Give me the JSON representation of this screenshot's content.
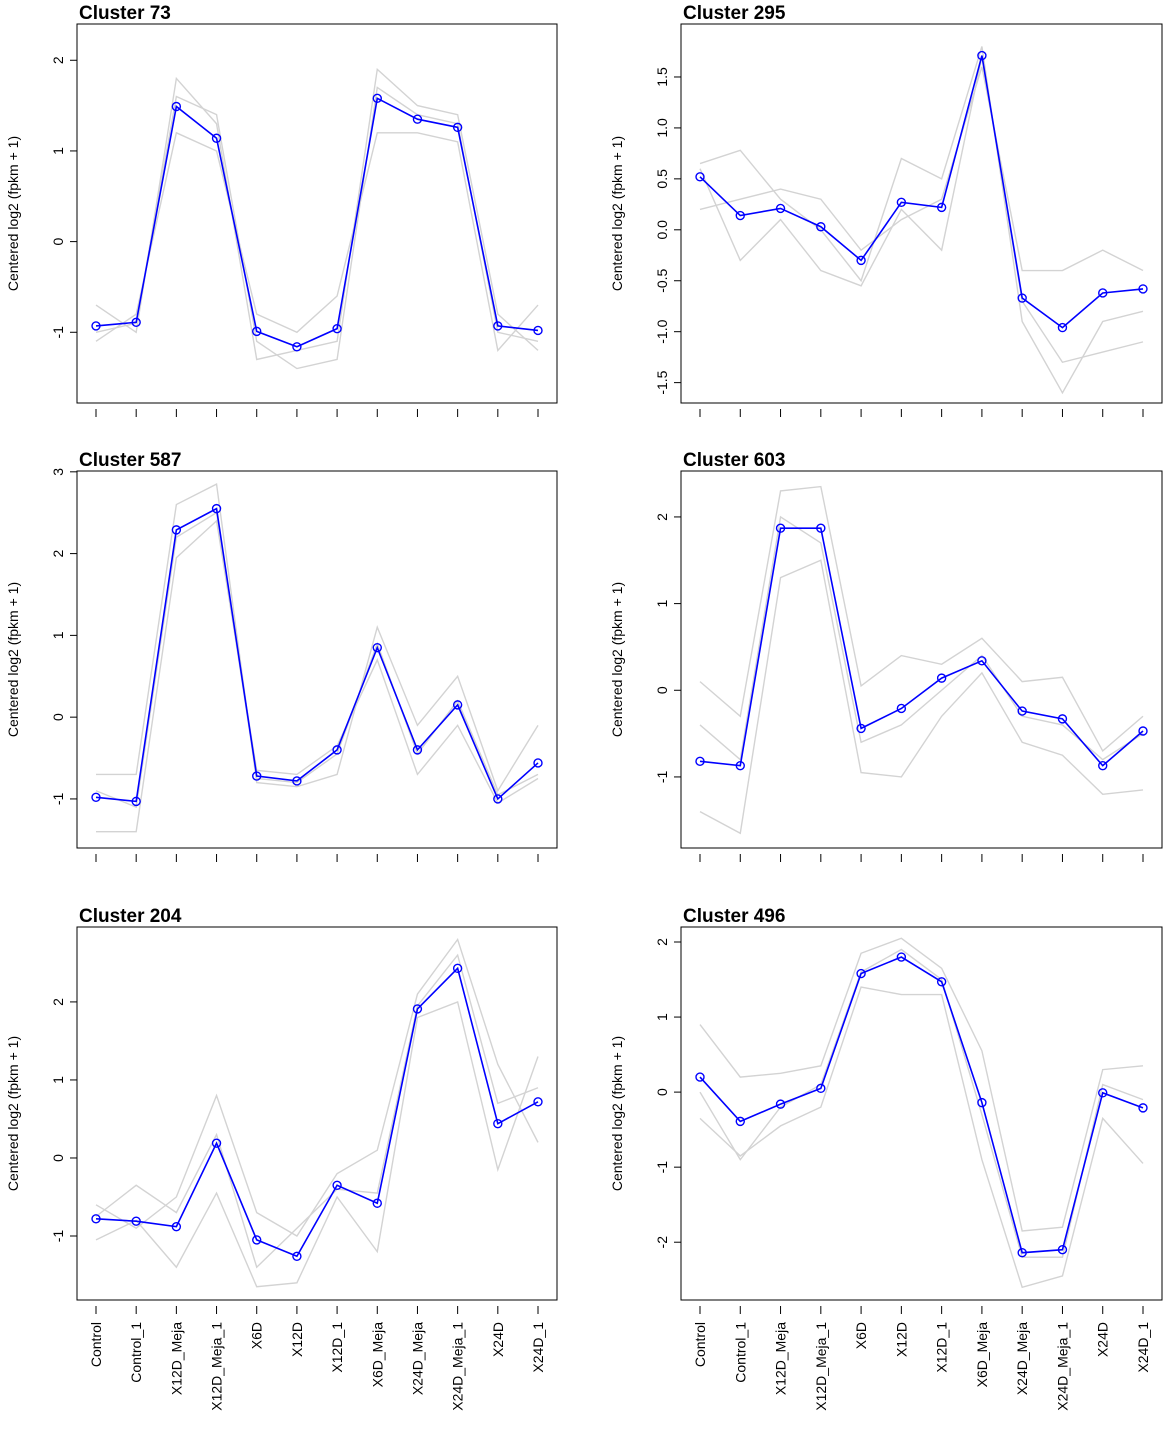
{
  "chart_data": [
    {
      "type": "line",
      "title": "Cluster 73",
      "y_label": "Centered log2 (fpkm + 1)",
      "ylim": [
        -1.78,
        2.4
      ],
      "yticks": [
        -1,
        0,
        1,
        2
      ],
      "series": [
        {
          "color": "#d3d3d3",
          "values": [
            -0.7,
            -1.0,
            1.8,
            1.3,
            -1.3,
            -1.2,
            -1.1,
            1.9,
            1.5,
            1.4,
            -0.8,
            -1.2
          ]
        },
        {
          "color": "#d3d3d3",
          "values": [
            -1.1,
            -0.8,
            1.2,
            1.0,
            -0.8,
            -1.0,
            -0.6,
            1.2,
            1.2,
            1.1,
            -1.2,
            -0.7
          ]
        },
        {
          "color": "#d3d3d3",
          "values": [
            -1.0,
            -0.9,
            1.6,
            1.4,
            -1.1,
            -1.4,
            -1.3,
            1.7,
            1.4,
            1.3,
            -1.0,
            -1.1
          ]
        },
        {
          "color": "#0000ff",
          "values": [
            -0.93,
            -0.89,
            1.49,
            1.14,
            -0.99,
            -1.16,
            -0.96,
            1.58,
            1.35,
            1.26,
            -0.93,
            -0.98
          ]
        }
      ]
    },
    {
      "type": "line",
      "title": "Cluster 295",
      "y_label": "Centered log2 (fpkm + 1)",
      "ylim": [
        -1.7,
        2.02
      ],
      "yticks": [
        -1.5,
        {
          "value": -1,
          "label": "-1.0"
        },
        -0.5,
        {
          "value": 0,
          "label": "0.0"
        },
        0.5,
        {
          "value": 1,
          "label": "1.0"
        },
        1.5
      ],
      "series": [
        {
          "color": "#d3d3d3",
          "values": [
            0.65,
            0.78,
            0.3,
            0.0,
            -0.5,
            0.7,
            0.5,
            1.8,
            -0.9,
            -1.6,
            -0.9,
            -0.8
          ]
        },
        {
          "color": "#d3d3d3",
          "values": [
            0.2,
            0.3,
            0.4,
            0.3,
            -0.2,
            0.1,
            0.3,
            1.6,
            -0.4,
            -0.4,
            -0.2,
            -0.4
          ]
        },
        {
          "color": "#d3d3d3",
          "values": [
            0.6,
            -0.3,
            0.1,
            -0.4,
            -0.55,
            0.2,
            -0.2,
            1.7,
            -0.7,
            -1.3,
            -1.2,
            -1.1
          ]
        },
        {
          "color": "#0000ff",
          "values": [
            0.52,
            0.14,
            0.21,
            0.03,
            -0.3,
            0.27,
            0.22,
            1.71,
            -0.67,
            -0.96,
            -0.62,
            -0.58
          ]
        }
      ]
    },
    {
      "type": "line",
      "title": "Cluster 587",
      "y_label": "Centered log2 (fpkm + 1)",
      "ylim": [
        -1.6,
        3.01
      ],
      "yticks": [
        -1,
        0,
        1,
        2,
        3
      ],
      "series": [
        {
          "color": "#d3d3d3",
          "values": [
            -0.7,
            -0.7,
            2.6,
            2.85,
            -0.8,
            -0.85,
            -0.7,
            1.1,
            -0.1,
            0.5,
            -0.9,
            -0.1
          ]
        },
        {
          "color": "#d3d3d3",
          "values": [
            -1.4,
            -1.4,
            1.95,
            2.4,
            -0.65,
            -0.7,
            -0.35,
            0.7,
            -0.7,
            -0.1,
            -1.05,
            -0.75
          ]
        },
        {
          "color": "#d3d3d3",
          "values": [
            -0.9,
            -1.1,
            2.2,
            2.5,
            -0.75,
            -0.8,
            -0.45,
            0.9,
            -0.45,
            0.2,
            -0.95,
            -0.7
          ]
        },
        {
          "color": "#0000ff",
          "values": [
            -0.98,
            -1.03,
            2.29,
            2.55,
            -0.72,
            -0.78,
            -0.4,
            0.85,
            -0.4,
            0.15,
            -1.0,
            -0.56
          ]
        }
      ]
    },
    {
      "type": "line",
      "title": "Cluster 603",
      "y_label": "Centered log2 (fpkm + 1)",
      "ylim": [
        -1.82,
        2.53
      ],
      "yticks": [
        -1,
        0,
        1,
        2
      ],
      "series": [
        {
          "color": "#d3d3d3",
          "values": [
            0.1,
            -0.3,
            2.3,
            2.35,
            0.05,
            0.4,
            0.3,
            0.6,
            0.1,
            0.15,
            -0.7,
            -0.3
          ]
        },
        {
          "color": "#d3d3d3",
          "values": [
            -1.4,
            -1.65,
            1.3,
            1.5,
            -0.95,
            -1.0,
            -0.3,
            0.2,
            -0.6,
            -0.75,
            -1.2,
            -1.15
          ]
        },
        {
          "color": "#d3d3d3",
          "values": [
            -0.4,
            -0.8,
            2.0,
            1.7,
            -0.6,
            -0.4,
            0.0,
            0.4,
            -0.3,
            -0.4,
            -0.8,
            -0.5
          ]
        },
        {
          "color": "#0000ff",
          "values": [
            -0.82,
            -0.87,
            1.87,
            1.87,
            -0.44,
            -0.21,
            0.14,
            0.34,
            -0.24,
            -0.33,
            -0.87,
            -0.47
          ]
        }
      ]
    },
    {
      "type": "line",
      "title": "Cluster 204",
      "y_label": "Centered log2 (fpkm + 1)",
      "categories": [
        "Control",
        "Control_1",
        "X12D_Meja",
        "X12D_Meja_1",
        "X6D",
        "X12D",
        "X12D_1",
        "X6D_Meja",
        "X24D_Meja",
        "X24D_Meja_1",
        "X24D",
        "X24D_1"
      ],
      "ylim": [
        -1.82,
        2.96
      ],
      "yticks": [
        -1,
        0,
        1,
        2
      ],
      "series": [
        {
          "color": "#d3d3d3",
          "values": [
            -0.6,
            -0.9,
            -0.5,
            0.8,
            -0.7,
            -1.0,
            -0.2,
            0.1,
            2.1,
            2.8,
            1.2,
            0.2
          ]
        },
        {
          "color": "#d3d3d3",
          "values": [
            -1.05,
            -0.8,
            -1.4,
            -0.45,
            -1.65,
            -1.6,
            -0.5,
            -1.2,
            1.8,
            2.0,
            -0.15,
            1.3
          ]
        },
        {
          "color": "#d3d3d3",
          "values": [
            -0.75,
            -0.35,
            -0.7,
            0.3,
            -1.4,
            -0.9,
            -0.4,
            -0.45,
            1.95,
            2.6,
            0.7,
            0.9
          ]
        },
        {
          "color": "#0000ff",
          "values": [
            -0.78,
            -0.81,
            -0.88,
            0.19,
            -1.05,
            -1.26,
            -0.35,
            -0.58,
            1.91,
            2.43,
            0.44,
            0.72
          ]
        }
      ]
    },
    {
      "type": "line",
      "title": "Cluster 496",
      "y_label": "Centered log2 (fpkm + 1)",
      "categories": [
        "Control",
        "Control_1",
        "X12D_Meja",
        "X12D_Meja_1",
        "X6D",
        "X12D",
        "X12D_1",
        "X6D_Meja",
        "X24D_Meja",
        "X24D_Meja_1",
        "X24D",
        "X24D_1"
      ],
      "ylim": [
        -2.77,
        2.2
      ],
      "yticks": [
        -2,
        -1,
        0,
        1,
        2
      ],
      "series": [
        {
          "color": "#d3d3d3",
          "values": [
            0.9,
            0.2,
            0.25,
            0.35,
            1.85,
            2.05,
            1.65,
            0.55,
            -1.85,
            -1.8,
            0.3,
            0.35
          ]
        },
        {
          "color": "#d3d3d3",
          "values": [
            -0.35,
            -0.85,
            -0.45,
            -0.2,
            1.4,
            1.3,
            1.3,
            -0.9,
            -2.6,
            -2.45,
            -0.35,
            -0.95
          ]
        },
        {
          "color": "#d3d3d3",
          "values": [
            0.0,
            -0.9,
            -0.2,
            0.1,
            1.6,
            1.9,
            1.5,
            -0.3,
            -2.2,
            -2.2,
            0.1,
            -0.1
          ]
        },
        {
          "color": "#0000ff",
          "values": [
            0.2,
            -0.39,
            -0.16,
            0.05,
            1.58,
            1.8,
            1.47,
            -0.14,
            -2.14,
            -2.1,
            -0.01,
            -0.21
          ]
        }
      ]
    }
  ]
}
